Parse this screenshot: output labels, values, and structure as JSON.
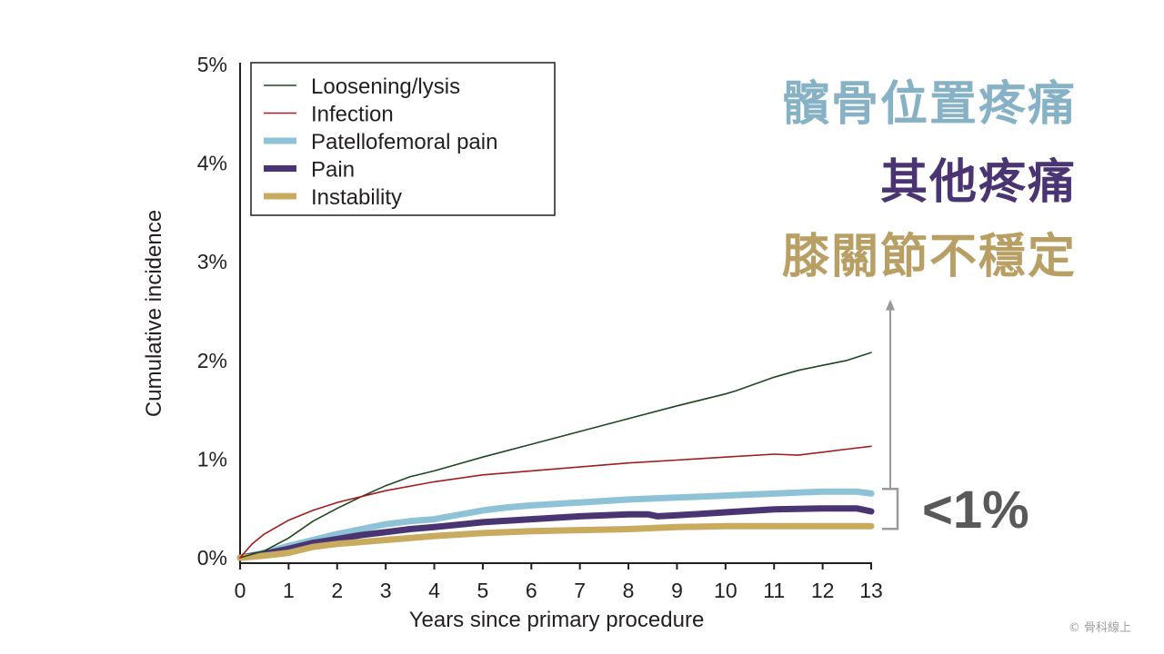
{
  "chart_data": {
    "type": "line",
    "xlabel": "Years since primary procedure",
    "ylabel": "Cumulative incidence",
    "xlim": [
      0,
      13
    ],
    "ylim": [
      0,
      5
    ],
    "x_ticks": [
      {
        "value": 0,
        "label": "0"
      },
      {
        "value": 1,
        "label": "1"
      },
      {
        "value": 2,
        "label": "2"
      },
      {
        "value": 3,
        "label": "3"
      },
      {
        "value": 4,
        "label": "4"
      },
      {
        "value": 5,
        "label": "5"
      },
      {
        "value": 6,
        "label": "6"
      },
      {
        "value": 7,
        "label": "7"
      },
      {
        "value": 8,
        "label": "8"
      },
      {
        "value": 9,
        "label": "9"
      },
      {
        "value": 10,
        "label": "10"
      },
      {
        "value": 11,
        "label": "11"
      },
      {
        "value": 12,
        "label": "12"
      },
      {
        "value": 13,
        "label": "13"
      }
    ],
    "y_ticks": [
      {
        "value": 0,
        "label": "0%"
      },
      {
        "value": 1,
        "label": "1%"
      },
      {
        "value": 2,
        "label": "2%"
      },
      {
        "value": 3,
        "label": "3%"
      },
      {
        "value": 4,
        "label": "4%"
      },
      {
        "value": 5,
        "label": "5%"
      }
    ],
    "grid": false,
    "legend_position": "top-left",
    "series": [
      {
        "name": "Loosening/lysis",
        "color": "#1e4620",
        "weight": "thin",
        "x": [
          0,
          0.5,
          1,
          1.5,
          2,
          2.5,
          3,
          3.5,
          4,
          5,
          6,
          7,
          8,
          9,
          10,
          10.2,
          11,
          11.5,
          12,
          12.5,
          13
        ],
        "y": [
          0,
          0.07,
          0.2,
          0.37,
          0.5,
          0.62,
          0.73,
          0.82,
          0.88,
          1.02,
          1.15,
          1.28,
          1.41,
          1.54,
          1.66,
          1.69,
          1.83,
          1.9,
          1.95,
          2.0,
          2.08
        ]
      },
      {
        "name": "Infection",
        "color": "#a11d1d",
        "weight": "thin",
        "x": [
          0,
          0.25,
          0.5,
          1,
          1.5,
          2,
          2.5,
          3,
          4,
          5,
          6,
          7,
          8,
          9,
          10,
          11,
          11.5,
          12,
          12.5,
          13
        ],
        "y": [
          0,
          0.14,
          0.24,
          0.38,
          0.48,
          0.56,
          0.62,
          0.68,
          0.77,
          0.84,
          0.88,
          0.92,
          0.96,
          0.99,
          1.02,
          1.05,
          1.04,
          1.07,
          1.1,
          1.13
        ]
      },
      {
        "name": "Patellofemoral pain",
        "color": "#8ec3d7",
        "weight": "thick",
        "x": [
          0,
          0.5,
          1,
          1.5,
          2,
          2.5,
          3,
          3.5,
          4,
          5,
          5.5,
          6,
          7,
          8,
          9,
          10,
          11,
          12,
          12.7,
          13
        ],
        "y": [
          0,
          0.05,
          0.12,
          0.18,
          0.24,
          0.29,
          0.34,
          0.37,
          0.39,
          0.48,
          0.51,
          0.53,
          0.56,
          0.59,
          0.61,
          0.63,
          0.65,
          0.67,
          0.67,
          0.65
        ]
      },
      {
        "name": "Pain",
        "color": "#4a3573",
        "weight": "thick",
        "x": [
          0,
          0.5,
          1,
          1.5,
          2,
          2.5,
          3,
          3.5,
          4,
          5,
          6,
          7,
          8,
          8.4,
          8.6,
          9,
          10,
          11,
          12,
          12.7,
          13
        ],
        "y": [
          0,
          0.04,
          0.09,
          0.15,
          0.19,
          0.23,
          0.26,
          0.29,
          0.31,
          0.36,
          0.39,
          0.42,
          0.44,
          0.44,
          0.42,
          0.43,
          0.46,
          0.49,
          0.5,
          0.5,
          0.47
        ]
      },
      {
        "name": "Instability",
        "color": "#c9ab60",
        "weight": "thick",
        "x": [
          0,
          0.5,
          1,
          1.5,
          2,
          3,
          4,
          5,
          6,
          7,
          8,
          9,
          10,
          11,
          12,
          13
        ],
        "y": [
          0,
          0.02,
          0.05,
          0.11,
          0.14,
          0.18,
          0.22,
          0.25,
          0.27,
          0.28,
          0.29,
          0.31,
          0.32,
          0.32,
          0.32,
          0.32
        ]
      }
    ],
    "annotations": {
      "bracket_label": "<1%",
      "bracket_range": [
        0.32,
        0.67
      ],
      "arrow_top_value": 2.6,
      "arrow_color": "#9a9a9a"
    }
  },
  "labels_zh": [
    {
      "text": "髕骨位置疼痛",
      "color": "#87b2c6"
    },
    {
      "text": "其他疼痛",
      "color": "#4a3572"
    },
    {
      "text": "膝關節不穩定",
      "color": "#b8a064"
    }
  ],
  "copyright": "© 骨科線上"
}
